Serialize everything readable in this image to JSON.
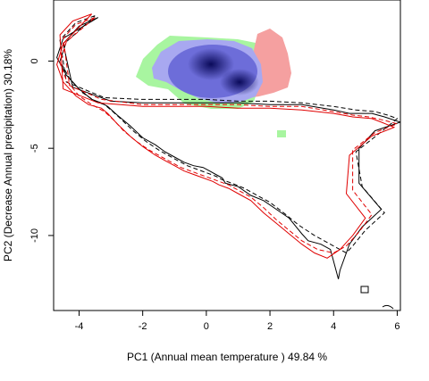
{
  "chart_data": {
    "type": "scatter",
    "title": "",
    "xlabel": "PC1 (Annual mean temperature ) 49.84 %",
    "ylabel": "PC2 (Decrease Annual precipitation) 30.18%",
    "xlim": [
      -4.8,
      6.1
    ],
    "ylim": [
      -14.3,
      3.5
    ],
    "xticks": [
      -4,
      -2,
      0,
      2,
      4,
      6
    ],
    "yticks": [
      0,
      -5,
      -10
    ],
    "xtick_labels": [
      "-4",
      "-2",
      "0",
      "2",
      "4",
      "6"
    ],
    "ytick_labels": [
      "0",
      "-5",
      "-10"
    ],
    "grid": false,
    "legend": null,
    "colors": {
      "overlap_dark": "#0a0a5a",
      "overlap_mid": "#5a5ad2",
      "overlap_light": "#a8a8f0",
      "green_niche": "#a8f5a0",
      "red_niche": "#f5a0a0",
      "contour_black": "#000000",
      "contour_red": "#e00000"
    },
    "series": [
      {
        "style": "solid-black",
        "x": [
          -3.4,
          -4.0,
          -4.5,
          -4.2,
          -3.0,
          -2.0,
          -1.0,
          0.0,
          1.0,
          2.0,
          3.0,
          4.0,
          4.5,
          5.2,
          5.6,
          6.1,
          5.3,
          4.8,
          4.8,
          5.5,
          4.9,
          4.5,
          4.2,
          4.15,
          3.9,
          3.6,
          3.2,
          3.0,
          2.6,
          2.2,
          1.8,
          1.4,
          1.0,
          0.6,
          0.5,
          0.4,
          0.1,
          -0.1,
          -0.4,
          -0.7,
          -1.0,
          -1.3,
          -1.6,
          -2.0,
          -2.4,
          -2.8,
          -3.1,
          -3.3,
          -3.6,
          -4.0,
          -4.4,
          -4.7,
          -4.5,
          -3.4
        ],
        "y": [
          2.5,
          2.0,
          1.0,
          -1.5,
          -2.3,
          -2.4,
          -2.4,
          -2.4,
          -2.4,
          -2.5,
          -2.5,
          -2.8,
          -3.0,
          -3.0,
          -3.2,
          -3.5,
          -4.0,
          -5.0,
          -7.0,
          -8.5,
          -9.5,
          -10.5,
          -12.0,
          -12.5,
          -10.8,
          -10.5,
          -10.3,
          -9.9,
          -9.0,
          -8.5,
          -8.0,
          -7.7,
          -7.2,
          -7.0,
          -6.7,
          -6.6,
          -6.3,
          -6.1,
          -6.0,
          -5.8,
          -5.5,
          -5.2,
          -4.8,
          -4.4,
          -3.7,
          -3.1,
          -2.6,
          -2.4,
          -2.2,
          -1.6,
          -0.8,
          0.2,
          1.3,
          2.5
        ]
      },
      {
        "style": "dashed-black",
        "x": [
          -3.5,
          -4.1,
          -4.6,
          -4.4,
          -3.2,
          -2.0,
          -1.0,
          0.0,
          1.0,
          2.0,
          3.0,
          4.0,
          4.7,
          5.3,
          5.7,
          6.0,
          5.4,
          4.7,
          4.9,
          5.6,
          5.0,
          4.6,
          4.4,
          4.0,
          3.4,
          2.9,
          2.5,
          2.0,
          1.6,
          1.2,
          0.8,
          0.5,
          0.3,
          0.0,
          -0.3,
          -0.6,
          -0.9,
          -1.2,
          -1.5,
          -1.9,
          -2.3,
          -2.7,
          -3.0,
          -3.2,
          -3.5,
          -3.9,
          -4.3,
          -4.6,
          -4.4,
          -3.5
        ],
        "y": [
          2.6,
          2.2,
          1.2,
          -1.2,
          -2.1,
          -2.2,
          -2.2,
          -2.2,
          -2.3,
          -2.3,
          -2.4,
          -2.6,
          -2.8,
          -2.9,
          -3.1,
          -3.3,
          -4.2,
          -5.2,
          -7.2,
          -8.7,
          -9.7,
          -10.6,
          -11.0,
          -10.6,
          -10.0,
          -9.4,
          -8.8,
          -8.1,
          -7.7,
          -7.3,
          -7.0,
          -6.8,
          -6.6,
          -6.4,
          -6.2,
          -6.0,
          -5.7,
          -5.4,
          -5.1,
          -4.6,
          -4.0,
          -3.3,
          -2.8,
          -2.5,
          -2.3,
          -1.8,
          -1.0,
          0.0,
          1.1,
          2.6
        ]
      },
      {
        "style": "solid-red",
        "x": [
          -3.6,
          -4.2,
          -4.6,
          -4.5,
          -3.4,
          -2.0,
          -1.0,
          0.0,
          1.0,
          2.0,
          3.0,
          4.0,
          4.6,
          5.2,
          5.5,
          5.9,
          5.2,
          4.5,
          4.4,
          5.0,
          4.6,
          4.2,
          3.8,
          3.4,
          3.0,
          2.6,
          2.2,
          1.8,
          1.4,
          1.0,
          0.7,
          0.4,
          0.2,
          -0.1,
          -0.4,
          -0.7,
          -1.0,
          -1.3,
          -1.6,
          -2.0,
          -2.4,
          -2.8,
          -3.1,
          -3.3,
          -3.7,
          -4.1,
          -4.5,
          -4.7,
          -4.5,
          -3.6
        ],
        "y": [
          2.7,
          2.3,
          1.5,
          -1.6,
          -2.4,
          -2.6,
          -2.6,
          -2.6,
          -2.7,
          -2.7,
          -2.8,
          -3.0,
          -3.2,
          -3.3,
          -3.5,
          -3.8,
          -4.3,
          -5.4,
          -7.6,
          -9.0,
          -10.0,
          -10.8,
          -11.3,
          -11.0,
          -10.5,
          -9.9,
          -9.3,
          -8.7,
          -8.0,
          -7.6,
          -7.3,
          -7.1,
          -6.9,
          -6.7,
          -6.5,
          -6.3,
          -6.0,
          -5.7,
          -5.4,
          -4.9,
          -4.3,
          -3.6,
          -3.0,
          -2.7,
          -2.5,
          -2.0,
          -1.2,
          -0.2,
          1.0,
          2.7
        ]
      },
      {
        "style": "dashed-red",
        "x": [
          -3.5,
          -4.1,
          -4.5,
          -4.3,
          -3.3,
          -2.0,
          -1.0,
          0.0,
          1.0,
          2.0,
          3.0,
          4.0,
          4.6,
          5.1,
          5.6,
          6.0,
          5.3,
          4.6,
          4.6,
          5.2,
          4.8,
          4.4,
          4.0,
          3.5,
          3.0,
          2.6,
          2.2,
          1.8,
          1.4,
          1.0,
          0.7,
          0.4,
          0.1,
          -0.2,
          -0.5,
          -0.8,
          -1.1,
          -1.4,
          -1.8,
          -2.2,
          -2.6,
          -2.9,
          -3.2,
          -3.6,
          -4.0,
          -4.4,
          -4.6,
          -4.4,
          -3.5
        ],
        "y": [
          2.5,
          2.1,
          1.3,
          -1.4,
          -2.2,
          -2.5,
          -2.5,
          -2.5,
          -2.5,
          -2.6,
          -2.6,
          -2.9,
          -3.1,
          -3.2,
          -3.4,
          -3.6,
          -4.1,
          -5.1,
          -7.4,
          -8.8,
          -9.8,
          -10.6,
          -11.0,
          -10.8,
          -10.3,
          -9.7,
          -9.1,
          -8.4,
          -7.8,
          -7.4,
          -7.1,
          -6.9,
          -6.7,
          -6.5,
          -6.3,
          -6.1,
          -5.8,
          -5.5,
          -5.1,
          -4.6,
          -4.0,
          -3.4,
          -2.9,
          -2.5,
          -2.0,
          -1.1,
          -0.1,
          1.1,
          2.5
        ]
      }
    ]
  }
}
